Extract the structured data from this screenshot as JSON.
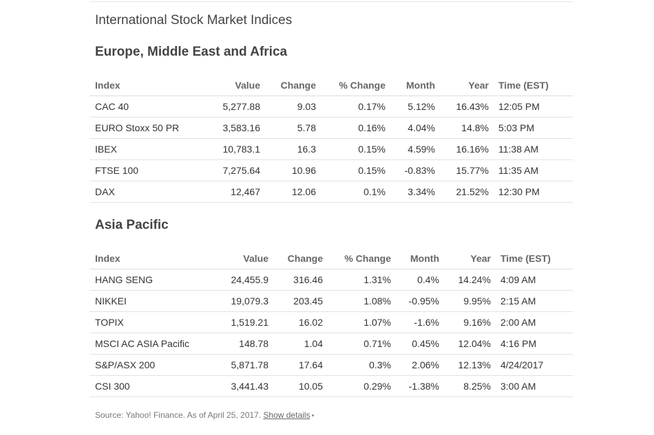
{
  "page_title": "International Stock Market Indices",
  "columns": [
    "Index",
    "Value",
    "Change",
    "% Change",
    "Month",
    "Year",
    "Time (EST)"
  ],
  "emea": {
    "title": "Europe, Middle East and Africa",
    "rows": [
      [
        "CAC 40",
        "5,277.88",
        "9.03",
        "0.17%",
        "5.12%",
        "16.43%",
        "12:05 PM"
      ],
      [
        "EURO Stoxx 50 PR",
        "3,583.16",
        "5.78",
        "0.16%",
        "4.04%",
        "14.8%",
        "5:03 PM"
      ],
      [
        "IBEX",
        "10,783.1",
        "16.3",
        "0.15%",
        "4.59%",
        "16.16%",
        "11:38 AM"
      ],
      [
        "FTSE 100",
        "7,275.64",
        "10.96",
        "0.15%",
        "-0.83%",
        "15.77%",
        "11:35 AM"
      ],
      [
        "DAX",
        "12,467",
        "12.06",
        "0.1%",
        "3.34%",
        "21.52%",
        "12:30 PM"
      ]
    ]
  },
  "asia": {
    "title": "Asia Pacific",
    "rows": [
      [
        "HANG SENG",
        "24,455.9",
        "316.46",
        "1.31%",
        "0.4%",
        "14.24%",
        "4:09 AM"
      ],
      [
        "NIKKEI",
        "19,079.3",
        "203.45",
        "1.08%",
        "-0.95%",
        "9.95%",
        "2:15 AM"
      ],
      [
        "TOPIX",
        "1,519.21",
        "16.02",
        "1.07%",
        "-1.6%",
        "9.16%",
        "2:00 AM"
      ],
      [
        "MSCI AC ASIA Pacific",
        "148.78",
        "1.04",
        "0.71%",
        "0.45%",
        "12.04%",
        "4:16 PM"
      ],
      [
        "S&P/ASX 200",
        "5,871.78",
        "17.64",
        "0.3%",
        "2.06%",
        "12.13%",
        "4/24/2017"
      ],
      [
        "CSI 300",
        "3,441.43",
        "10.05",
        "0.29%",
        "-1.38%",
        "8.25%",
        "3:00 AM"
      ]
    ]
  },
  "footer": {
    "source_text": "Source: Yahoo! Finance. As of April 25, 2017.",
    "show_details_label": "Show details"
  }
}
